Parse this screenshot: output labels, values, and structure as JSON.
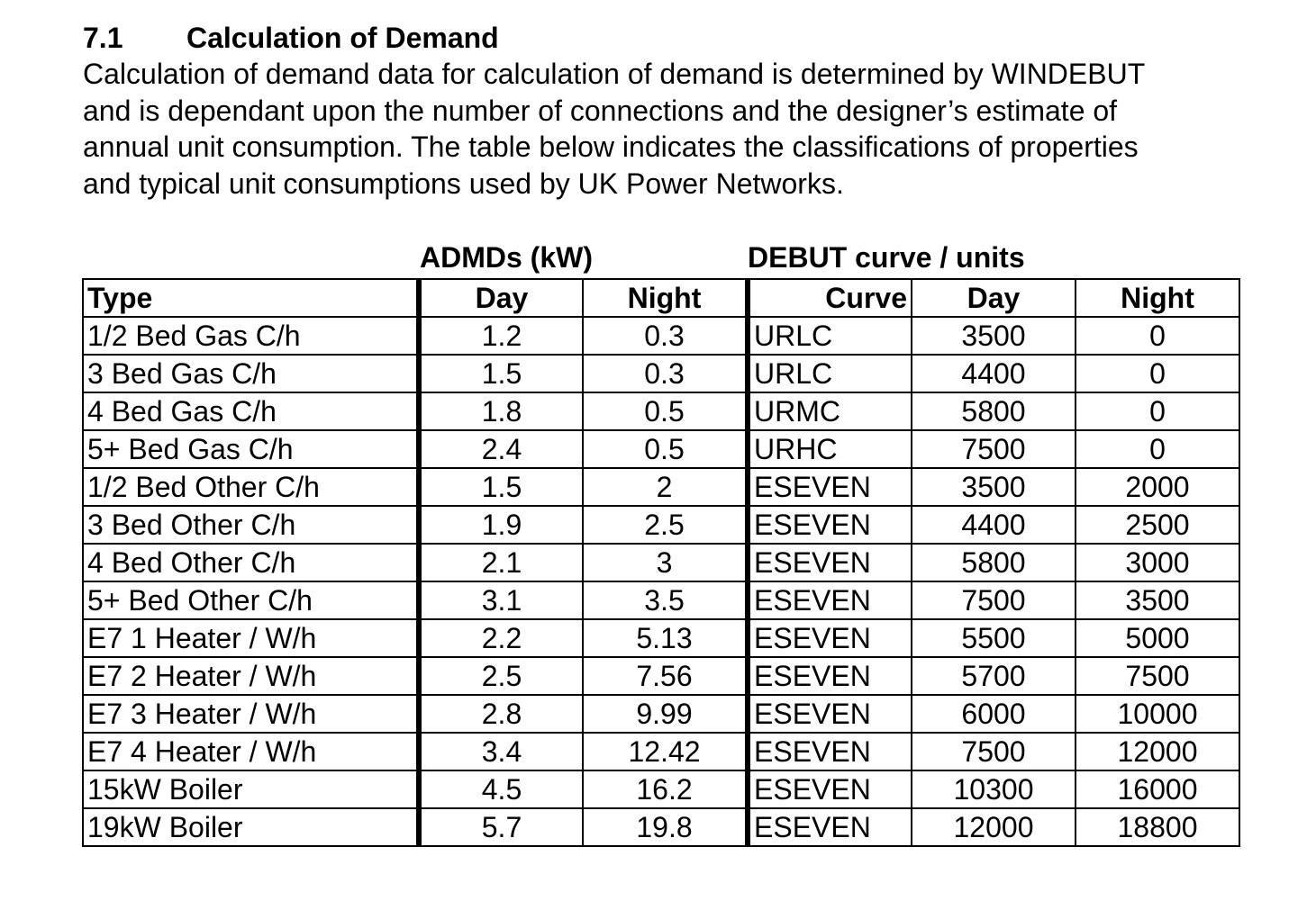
{
  "section": {
    "number": "7.1",
    "title": "Calculation of Demand",
    "paragraph_lines": [
      "Calculation of demand data for calculation of demand is determined by WINDEBUT",
      "and is dependant upon the number of connections and the designer’s estimate of",
      "annual unit consumption. The table below indicates the classifications of properties",
      "and typical unit consumptions used by UK Power Networks."
    ]
  },
  "table": {
    "group_headers": {
      "admd": "ADMDs (kW)",
      "debut": "DEBUT curve / units"
    },
    "columns": [
      "Type",
      "Day",
      "Night",
      "Curve",
      "Day",
      "Night"
    ],
    "rows": [
      [
        "1/2 Bed Gas C/h",
        "1.2",
        "0.3",
        "URLC",
        "3500",
        "0"
      ],
      [
        "3 Bed Gas C/h",
        "1.5",
        "0.3",
        "URLC",
        "4400",
        "0"
      ],
      [
        "4 Bed Gas C/h",
        "1.8",
        "0.5",
        "URMC",
        "5800",
        "0"
      ],
      [
        "5+ Bed Gas C/h",
        "2.4",
        "0.5",
        "URHC",
        "7500",
        "0"
      ],
      [
        "1/2 Bed Other C/h",
        "1.5",
        "2",
        "ESEVEN",
        "3500",
        "2000"
      ],
      [
        "3 Bed Other C/h",
        "1.9",
        "2.5",
        "ESEVEN",
        "4400",
        "2500"
      ],
      [
        "4 Bed Other C/h",
        "2.1",
        "3",
        "ESEVEN",
        "5800",
        "3000"
      ],
      [
        "5+ Bed Other C/h",
        "3.1",
        "3.5",
        "ESEVEN",
        "7500",
        "3500"
      ],
      [
        "E7 1 Heater / W/h",
        "2.2",
        "5.13",
        "ESEVEN",
        "5500",
        "5000"
      ],
      [
        "E7 2 Heater / W/h",
        "2.5",
        "7.56",
        "ESEVEN",
        "5700",
        "7500"
      ],
      [
        "E7 3 Heater / W/h",
        "2.8",
        "9.99",
        "ESEVEN",
        "6000",
        "10000"
      ],
      [
        "E7 4 Heater / W/h",
        "3.4",
        "12.42",
        "ESEVEN",
        "7500",
        "12000"
      ],
      [
        "15kW Boiler",
        "4.5",
        "16.2",
        "ESEVEN",
        "10300",
        "16000"
      ],
      [
        "19kW Boiler",
        "5.7",
        "19.8",
        "ESEVEN",
        "12000",
        "18800"
      ]
    ]
  }
}
